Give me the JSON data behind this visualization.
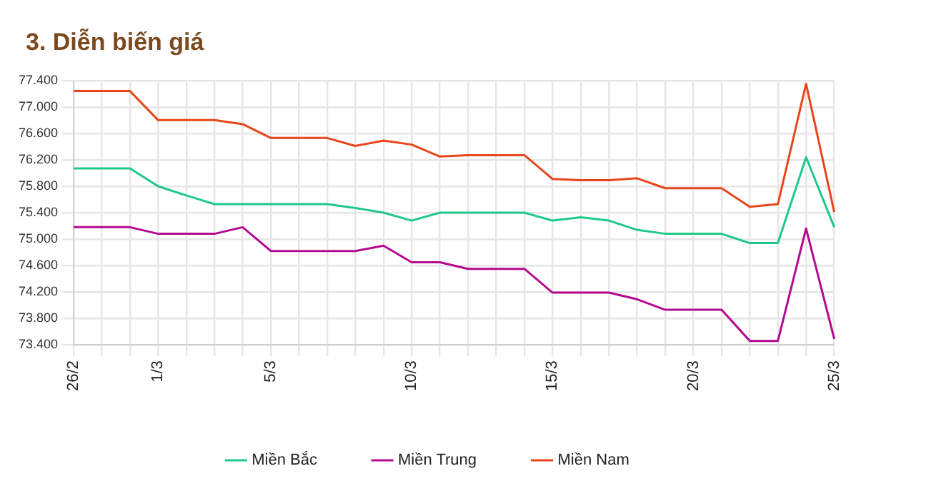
{
  "chart_data": {
    "type": "line",
    "title": "3. Diễn biến giá",
    "categories": [
      "26/2",
      null,
      null,
      "1/3",
      null,
      null,
      null,
      "5/3",
      null,
      null,
      null,
      null,
      "10/3",
      null,
      null,
      null,
      null,
      "15/3",
      null,
      null,
      null,
      null,
      "20/3",
      null,
      null,
      null,
      null,
      "25/3"
    ],
    "series": [
      {
        "name": "Miền Bắc",
        "color": "#1ec98a",
        "values": [
          76070,
          76070,
          76070,
          75800,
          75660,
          75530,
          75530,
          75530,
          75530,
          75530,
          75470,
          75400,
          75280,
          75400,
          75400,
          75400,
          75400,
          75280,
          75330,
          75280,
          75140,
          75080,
          75080,
          75080,
          74940,
          74940,
          76240,
          75180
        ]
      },
      {
        "name": "Miền Trung",
        "color": "#b5098f",
        "values": [
          75180,
          75180,
          75180,
          75080,
          75080,
          75080,
          75180,
          74820,
          74820,
          74820,
          74820,
          74900,
          74650,
          74650,
          74550,
          74550,
          74550,
          74190,
          74190,
          74190,
          74090,
          73930,
          73930,
          73930,
          73460,
          73460,
          75160,
          73490
        ]
      },
      {
        "name": "Miền Nam",
        "color": "#e8461a",
        "values": [
          77240,
          77240,
          77240,
          76800,
          76800,
          76800,
          76740,
          76530,
          76530,
          76530,
          76410,
          76490,
          76430,
          76250,
          76270,
          76270,
          76270,
          75910,
          75890,
          75890,
          75920,
          75770,
          75770,
          75770,
          75490,
          75530,
          77350,
          75410
        ]
      }
    ],
    "ylim": [
      73400,
      77400
    ],
    "yticks": [
      {
        "value": 73400,
        "label": "73.400"
      },
      {
        "value": 73800,
        "label": "73.800"
      },
      {
        "value": 74200,
        "label": "74.200"
      },
      {
        "value": 74600,
        "label": "74.600"
      },
      {
        "value": 75000,
        "label": "75.000"
      },
      {
        "value": 75400,
        "label": "75.400"
      },
      {
        "value": 75800,
        "label": "75.800"
      },
      {
        "value": 76200,
        "label": "76.200"
      },
      {
        "value": 76600,
        "label": "76.600"
      },
      {
        "value": 77000,
        "label": "77.000"
      },
      {
        "value": 77400,
        "label": "77.400"
      }
    ],
    "grid": true,
    "legend": "bottom",
    "marker": "none",
    "line_style": "solid"
  }
}
